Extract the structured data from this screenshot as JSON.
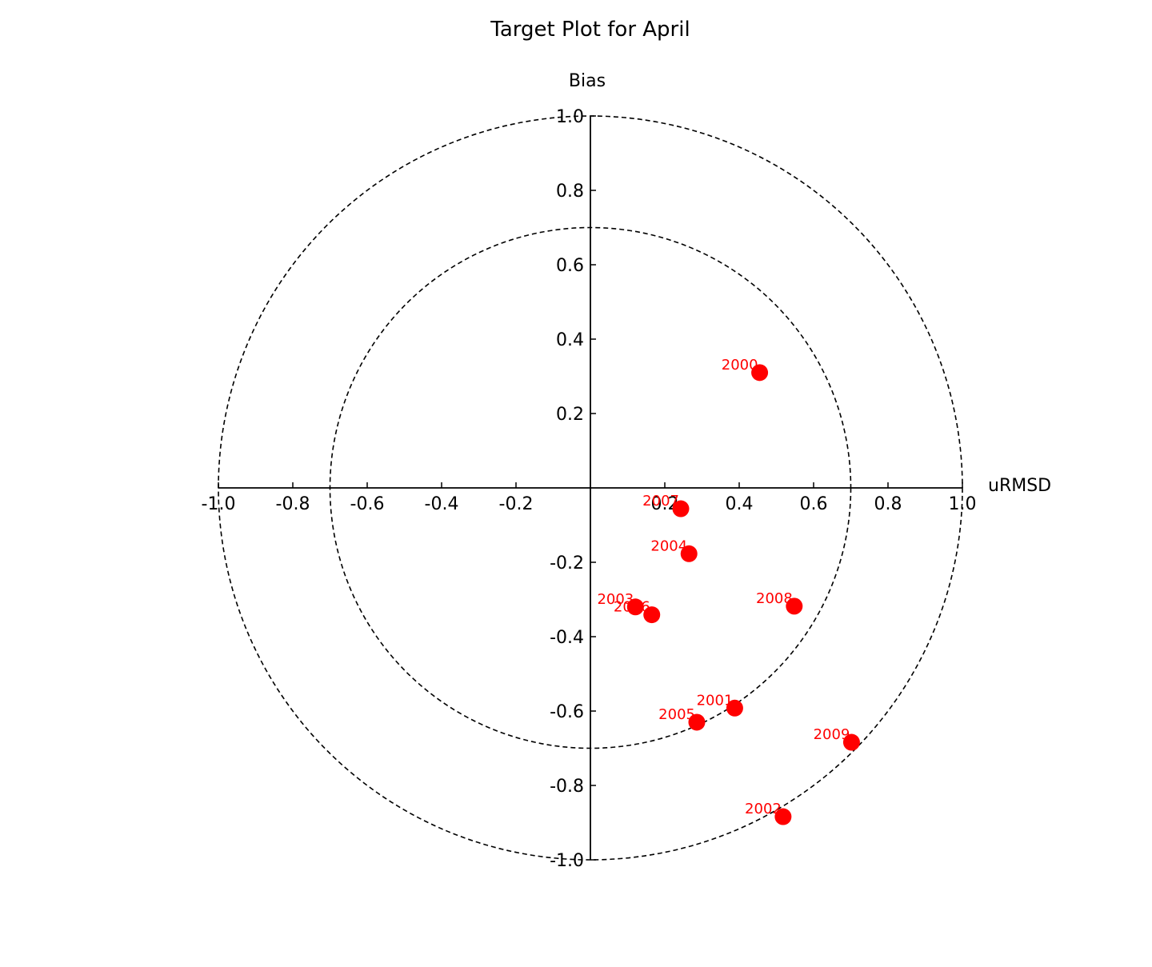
{
  "chart_data": {
    "type": "scatter",
    "title": "Target Plot for April",
    "xlabel": "uRMSD",
    "ylabel": "Bias",
    "xlim": [
      -1.0,
      1.0
    ],
    "ylim": [
      -1.0,
      1.0
    ],
    "x_ticks": [
      "-1.0",
      "-0.8",
      "-0.6",
      "-0.4",
      "-0.2",
      "0.2",
      "0.4",
      "0.6",
      "0.8",
      "1.0"
    ],
    "x_tick_values": [
      -1.0,
      -0.8,
      -0.6,
      -0.4,
      -0.2,
      0.2,
      0.4,
      0.6,
      0.8,
      1.0
    ],
    "y_ticks": [
      "1.0",
      "0.8",
      "0.6",
      "0.4",
      "0.2",
      "-0.2",
      "-0.4",
      "-0.6",
      "-0.8",
      "-1.0"
    ],
    "y_tick_values": [
      1.0,
      0.8,
      0.6,
      0.4,
      0.2,
      -0.2,
      -0.4,
      -0.6,
      -0.8,
      -1.0
    ],
    "circles": [
      0.7,
      1.0
    ],
    "marker_color": "#ff0000",
    "label_color": "#ff0000",
    "grid": false,
    "points": [
      {
        "label": "2000",
        "x": 0.455,
        "y": 0.31
      },
      {
        "label": "2001",
        "x": 0.388,
        "y": -0.592
      },
      {
        "label": "2002",
        "x": 0.518,
        "y": -0.884
      },
      {
        "label": "2003",
        "x": 0.121,
        "y": -0.32
      },
      {
        "label": "2004",
        "x": 0.265,
        "y": -0.177
      },
      {
        "label": "2005",
        "x": 0.286,
        "y": -0.63
      },
      {
        "label": "2006",
        "x": 0.165,
        "y": -0.341
      },
      {
        "label": "2007",
        "x": 0.243,
        "y": -0.056
      },
      {
        "label": "2008",
        "x": 0.548,
        "y": -0.318
      },
      {
        "label": "2009",
        "x": 0.702,
        "y": -0.684
      }
    ]
  }
}
